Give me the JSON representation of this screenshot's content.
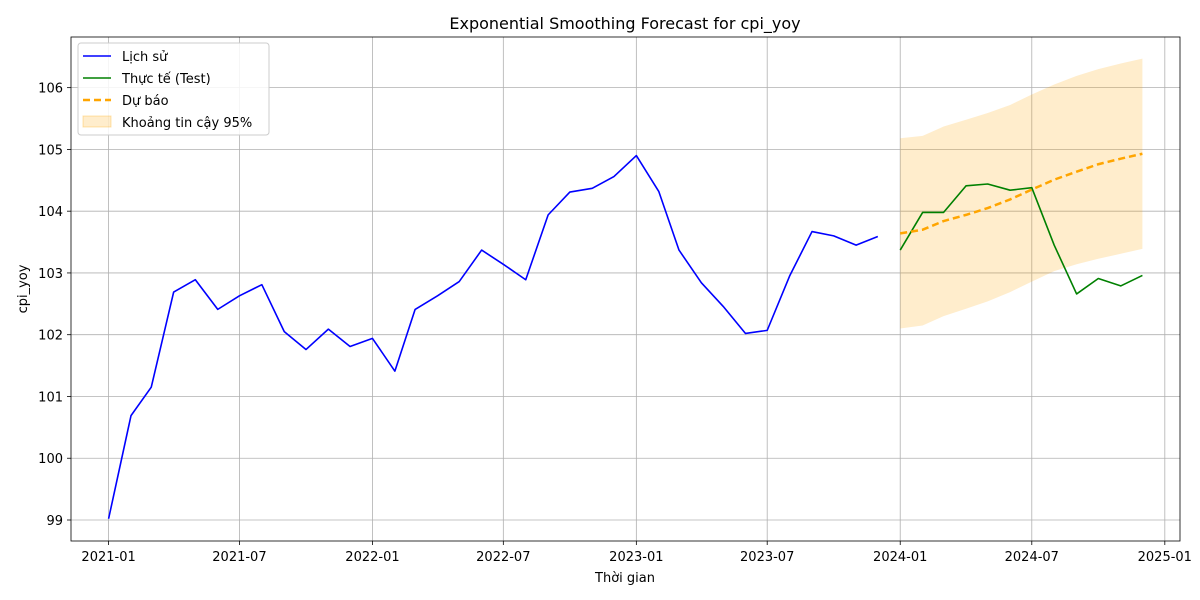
{
  "chart_data": {
    "type": "line",
    "title": "Exponential Smoothing Forecast for cpi_yoy",
    "xlabel": "Thời gian",
    "ylabel": "cpi_yoy",
    "x_range": [
      "2020-11-10",
      "2025-01-22"
    ],
    "ylim": [
      98.66,
      106.82
    ],
    "x_ticks": [
      "2021-01",
      "2021-07",
      "2022-01",
      "2022-07",
      "2023-01",
      "2023-07",
      "2024-01",
      "2024-07",
      "2025-01"
    ],
    "y_ticks": [
      99,
      100,
      101,
      102,
      103,
      104,
      105,
      106
    ],
    "grid": true,
    "legend_position": "top-left",
    "series": [
      {
        "name": "Lịch sử",
        "color": "#0000ff",
        "style": "solid",
        "x": [
          "2021-01",
          "2021-02",
          "2021-03",
          "2021-04",
          "2021-05",
          "2021-06",
          "2021-07",
          "2021-08",
          "2021-09",
          "2021-10",
          "2021-11",
          "2021-12",
          "2022-01",
          "2022-02",
          "2022-03",
          "2022-04",
          "2022-05",
          "2022-06",
          "2022-07",
          "2022-08",
          "2022-09",
          "2022-10",
          "2022-11",
          "2022-12",
          "2023-01",
          "2023-02",
          "2023-03",
          "2023-04",
          "2023-05",
          "2023-06",
          "2023-07",
          "2023-08",
          "2023-09",
          "2023-10",
          "2023-11",
          "2023-12"
        ],
        "values": [
          99.02,
          100.69,
          101.15,
          102.69,
          102.89,
          102.41,
          102.63,
          102.81,
          102.05,
          101.76,
          102.09,
          101.81,
          101.94,
          101.41,
          102.41,
          102.63,
          102.86,
          103.37,
          103.14,
          102.89,
          103.94,
          104.31,
          104.37,
          104.56,
          104.9,
          104.32,
          103.37,
          102.84,
          102.46,
          102.02,
          102.07,
          102.95,
          103.67,
          103.6,
          103.45,
          103.59
        ]
      },
      {
        "name": "Thực tế (Test)",
        "color": "#008000",
        "style": "solid",
        "x": [
          "2024-01",
          "2024-02",
          "2024-03",
          "2024-04",
          "2024-05",
          "2024-06",
          "2024-07",
          "2024-08",
          "2024-09",
          "2024-10",
          "2024-11",
          "2024-12"
        ],
        "values": [
          103.37,
          103.98,
          103.98,
          104.41,
          104.44,
          104.34,
          104.38,
          103.45,
          102.66,
          102.91,
          102.79,
          102.96
        ]
      },
      {
        "name": "Dự báo",
        "color": "#ffa500",
        "style": "dashed",
        "x": [
          "2024-01",
          "2024-02",
          "2024-03",
          "2024-04",
          "2024-05",
          "2024-06",
          "2024-07",
          "2024-08",
          "2024-09",
          "2024-10",
          "2024-11",
          "2024-12"
        ],
        "values": [
          103.64,
          103.7,
          103.84,
          103.94,
          104.05,
          104.19,
          104.35,
          104.51,
          104.64,
          104.76,
          104.85,
          104.93
        ]
      }
    ],
    "band": {
      "name": "Khoảng tin cậy 95%",
      "color": "#ffa500",
      "opacity": 0.2,
      "x": [
        "2024-01",
        "2024-02",
        "2024-03",
        "2024-04",
        "2024-05",
        "2024-06",
        "2024-07",
        "2024-08",
        "2024-09",
        "2024-10",
        "2024-11",
        "2024-12"
      ],
      "lower": [
        102.1,
        102.15,
        102.3,
        102.42,
        102.54,
        102.69,
        102.86,
        103.03,
        103.14,
        103.23,
        103.31,
        103.39
      ],
      "upper": [
        105.18,
        105.22,
        105.37,
        105.48,
        105.59,
        105.72,
        105.89,
        106.05,
        106.19,
        106.3,
        106.39,
        106.47
      ]
    }
  }
}
